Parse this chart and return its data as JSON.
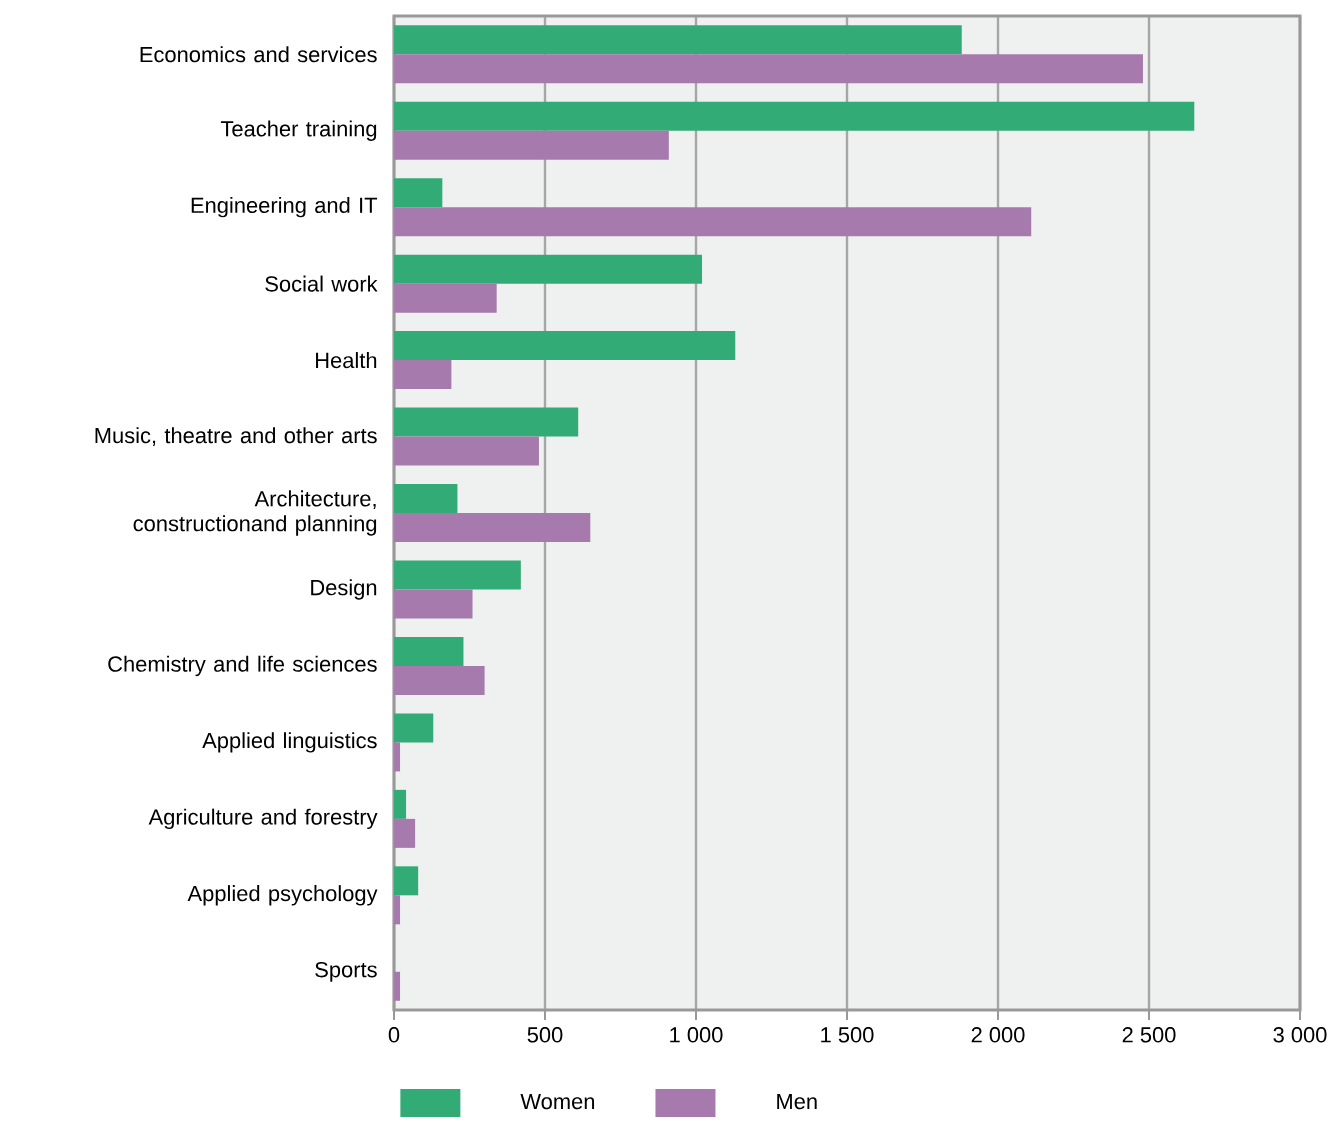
{
  "chart_data": {
    "type": "bar",
    "orientation": "horizontal",
    "categories": [
      "Economics and services",
      "Teacher training",
      "Engineering and IT",
      "Social work",
      "Health",
      "Music, theatre and other arts",
      "Architecture, constructionand planning",
      "Design",
      "Chemistry and life sciences",
      "Applied linguistics",
      "Agriculture and forestry",
      "Applied psychology",
      "Sports"
    ],
    "series": [
      {
        "name": "Women",
        "color": "#33ab77",
        "values": [
          1880,
          2650,
          160,
          1020,
          1130,
          610,
          210,
          420,
          230,
          130,
          40,
          80,
          null
        ]
      },
      {
        "name": "Men",
        "color": "#a67aad",
        "values": [
          2480,
          910,
          2110,
          340,
          190,
          480,
          650,
          260,
          300,
          20,
          70,
          20,
          20
        ]
      }
    ],
    "xlim": [
      0,
      3000
    ],
    "xticks": [
      0,
      500,
      {
        "value": 1000,
        "label": "1 000"
      },
      {
        "value": 1500,
        "label": "1 500"
      },
      {
        "value": 2000,
        "label": "2 000"
      },
      {
        "value": 2500,
        "label": "2 500"
      },
      {
        "value": 3000,
        "label": "3 000"
      }
    ],
    "grid": "x",
    "legend": "bottom"
  }
}
